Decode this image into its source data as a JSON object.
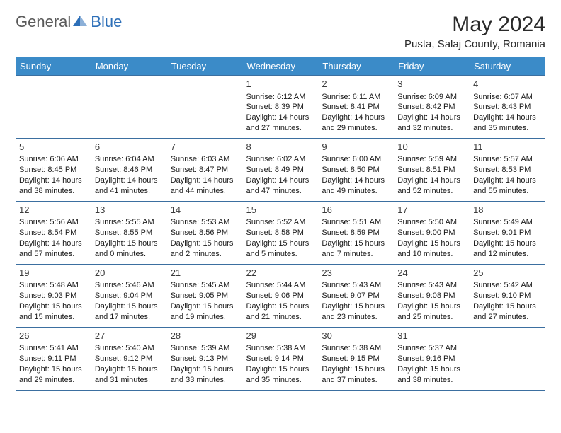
{
  "logo": {
    "general": "General",
    "blue": "Blue"
  },
  "title": "May 2024",
  "location": "Pusta, Salaj County, Romania",
  "colors": {
    "header_bg": "#3b8bc8",
    "header_text": "#ffffff",
    "cell_border": "#3b6fa0",
    "logo_gray": "#5a5a5a",
    "logo_blue": "#2d6fb8"
  },
  "weekdays": [
    "Sunday",
    "Monday",
    "Tuesday",
    "Wednesday",
    "Thursday",
    "Friday",
    "Saturday"
  ],
  "weeks": [
    [
      null,
      null,
      null,
      {
        "n": "1",
        "sr": "6:12 AM",
        "ss": "8:39 PM",
        "dl": "14 hours and 27 minutes."
      },
      {
        "n": "2",
        "sr": "6:11 AM",
        "ss": "8:41 PM",
        "dl": "14 hours and 29 minutes."
      },
      {
        "n": "3",
        "sr": "6:09 AM",
        "ss": "8:42 PM",
        "dl": "14 hours and 32 minutes."
      },
      {
        "n": "4",
        "sr": "6:07 AM",
        "ss": "8:43 PM",
        "dl": "14 hours and 35 minutes."
      }
    ],
    [
      {
        "n": "5",
        "sr": "6:06 AM",
        "ss": "8:45 PM",
        "dl": "14 hours and 38 minutes."
      },
      {
        "n": "6",
        "sr": "6:04 AM",
        "ss": "8:46 PM",
        "dl": "14 hours and 41 minutes."
      },
      {
        "n": "7",
        "sr": "6:03 AM",
        "ss": "8:47 PM",
        "dl": "14 hours and 44 minutes."
      },
      {
        "n": "8",
        "sr": "6:02 AM",
        "ss": "8:49 PM",
        "dl": "14 hours and 47 minutes."
      },
      {
        "n": "9",
        "sr": "6:00 AM",
        "ss": "8:50 PM",
        "dl": "14 hours and 49 minutes."
      },
      {
        "n": "10",
        "sr": "5:59 AM",
        "ss": "8:51 PM",
        "dl": "14 hours and 52 minutes."
      },
      {
        "n": "11",
        "sr": "5:57 AM",
        "ss": "8:53 PM",
        "dl": "14 hours and 55 minutes."
      }
    ],
    [
      {
        "n": "12",
        "sr": "5:56 AM",
        "ss": "8:54 PM",
        "dl": "14 hours and 57 minutes."
      },
      {
        "n": "13",
        "sr": "5:55 AM",
        "ss": "8:55 PM",
        "dl": "15 hours and 0 minutes."
      },
      {
        "n": "14",
        "sr": "5:53 AM",
        "ss": "8:56 PM",
        "dl": "15 hours and 2 minutes."
      },
      {
        "n": "15",
        "sr": "5:52 AM",
        "ss": "8:58 PM",
        "dl": "15 hours and 5 minutes."
      },
      {
        "n": "16",
        "sr": "5:51 AM",
        "ss": "8:59 PM",
        "dl": "15 hours and 7 minutes."
      },
      {
        "n": "17",
        "sr": "5:50 AM",
        "ss": "9:00 PM",
        "dl": "15 hours and 10 minutes."
      },
      {
        "n": "18",
        "sr": "5:49 AM",
        "ss": "9:01 PM",
        "dl": "15 hours and 12 minutes."
      }
    ],
    [
      {
        "n": "19",
        "sr": "5:48 AM",
        "ss": "9:03 PM",
        "dl": "15 hours and 15 minutes."
      },
      {
        "n": "20",
        "sr": "5:46 AM",
        "ss": "9:04 PM",
        "dl": "15 hours and 17 minutes."
      },
      {
        "n": "21",
        "sr": "5:45 AM",
        "ss": "9:05 PM",
        "dl": "15 hours and 19 minutes."
      },
      {
        "n": "22",
        "sr": "5:44 AM",
        "ss": "9:06 PM",
        "dl": "15 hours and 21 minutes."
      },
      {
        "n": "23",
        "sr": "5:43 AM",
        "ss": "9:07 PM",
        "dl": "15 hours and 23 minutes."
      },
      {
        "n": "24",
        "sr": "5:43 AM",
        "ss": "9:08 PM",
        "dl": "15 hours and 25 minutes."
      },
      {
        "n": "25",
        "sr": "5:42 AM",
        "ss": "9:10 PM",
        "dl": "15 hours and 27 minutes."
      }
    ],
    [
      {
        "n": "26",
        "sr": "5:41 AM",
        "ss": "9:11 PM",
        "dl": "15 hours and 29 minutes."
      },
      {
        "n": "27",
        "sr": "5:40 AM",
        "ss": "9:12 PM",
        "dl": "15 hours and 31 minutes."
      },
      {
        "n": "28",
        "sr": "5:39 AM",
        "ss": "9:13 PM",
        "dl": "15 hours and 33 minutes."
      },
      {
        "n": "29",
        "sr": "5:38 AM",
        "ss": "9:14 PM",
        "dl": "15 hours and 35 minutes."
      },
      {
        "n": "30",
        "sr": "5:38 AM",
        "ss": "9:15 PM",
        "dl": "15 hours and 37 minutes."
      },
      {
        "n": "31",
        "sr": "5:37 AM",
        "ss": "9:16 PM",
        "dl": "15 hours and 38 minutes."
      },
      null
    ]
  ],
  "labels": {
    "sunrise": "Sunrise:",
    "sunset": "Sunset:",
    "daylight": "Daylight:"
  }
}
